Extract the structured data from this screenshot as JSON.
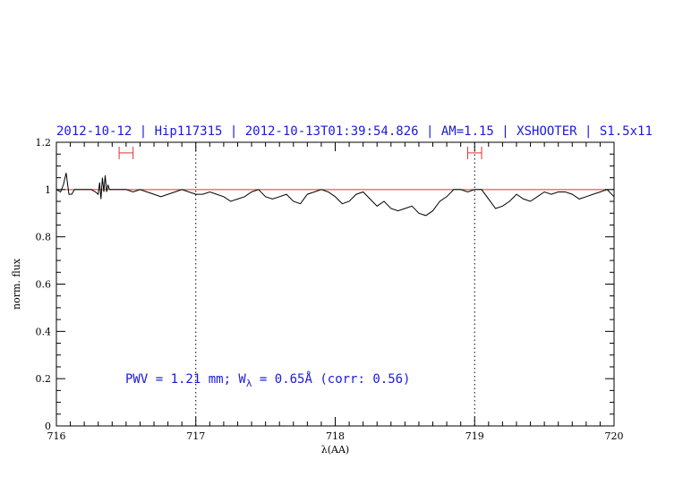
{
  "colors": {
    "title": "#1a1adc",
    "spectrum": "#000000",
    "continuum": "#e03030",
    "markers": "#e03030",
    "vlines": "#000000",
    "annotation": "#1a1adc"
  },
  "chart_data": {
    "type": "line",
    "title": "2012-10-12 | Hip117315 | 2012-10-13T01:39:54.826 | AM=1.15 | XSHOOTER | S1.5x11",
    "xlabel": "λ(AA)",
    "ylabel": "norm. flux",
    "xlim": [
      716,
      720
    ],
    "ylim": [
      0,
      1.2
    ],
    "x_ticks": [
      716,
      717,
      718,
      719,
      720
    ],
    "x_tick_labels": [
      "716",
      "717",
      "718",
      "719",
      "720"
    ],
    "y_ticks": [
      0,
      0.2,
      0.4,
      0.6,
      0.8,
      1,
      1.2
    ],
    "y_tick_labels": [
      "0",
      "0.2",
      "0.4",
      "0.6",
      "0.8",
      "1",
      "1.2"
    ],
    "grid": false,
    "continuum_level": 1.0,
    "vertical_lines": [
      717.0,
      719.0
    ],
    "interval_markers": [
      {
        "x0": 716.45,
        "x1": 716.55,
        "y": 1.155
      },
      {
        "x0": 718.95,
        "x1": 719.05,
        "y": 1.155
      }
    ],
    "annotation": {
      "pwv": "PWV = 1.21 mm; W",
      "sub": "λ",
      "rest": " = 0.65Å (corr: 0.56)"
    },
    "series": [
      {
        "x": [
          716.0,
          716.03,
          716.05,
          716.07,
          716.09,
          716.11,
          716.13,
          716.16,
          716.2,
          716.25,
          716.28,
          716.3,
          716.31,
          716.32,
          716.33,
          716.34,
          716.35,
          716.36,
          716.37,
          716.38,
          716.42,
          716.46,
          716.5,
          716.55,
          716.6,
          716.65,
          716.7,
          716.75,
          716.8,
          716.85,
          716.9,
          716.95,
          717.0,
          717.05,
          717.1,
          717.15,
          717.2,
          717.25,
          717.3,
          717.35,
          717.4,
          717.45,
          717.5,
          717.55,
          717.6,
          717.65,
          717.7,
          717.75,
          717.8,
          717.85,
          717.9,
          717.95,
          718.0,
          718.05,
          718.1,
          718.15,
          718.2,
          718.25,
          718.3,
          718.35,
          718.4,
          718.45,
          718.5,
          718.55,
          718.6,
          718.65,
          718.7,
          718.75,
          718.8,
          718.85,
          718.9,
          718.95,
          719.0,
          719.05,
          719.1,
          719.15,
          719.2,
          719.25,
          719.3,
          719.35,
          719.4,
          719.45,
          719.5,
          719.55,
          719.6,
          719.65,
          719.7,
          719.75,
          719.8,
          719.85,
          719.9,
          719.95,
          720.0
        ],
        "y": [
          1.0,
          0.99,
          1.02,
          1.07,
          0.98,
          0.98,
          1.0,
          1.0,
          1.0,
          1.0,
          0.99,
          0.98,
          1.03,
          0.96,
          1.05,
          0.99,
          1.06,
          0.99,
          1.02,
          1.0,
          1.0,
          1.0,
          1.0,
          0.99,
          1.0,
          0.99,
          0.98,
          0.97,
          0.98,
          0.99,
          1.0,
          0.99,
          0.98,
          0.98,
          0.99,
          0.98,
          0.97,
          0.95,
          0.96,
          0.97,
          0.99,
          1.0,
          0.97,
          0.96,
          0.97,
          0.98,
          0.95,
          0.94,
          0.98,
          0.99,
          1.0,
          0.99,
          0.97,
          0.94,
          0.95,
          0.98,
          0.99,
          0.96,
          0.93,
          0.95,
          0.92,
          0.91,
          0.92,
          0.93,
          0.9,
          0.89,
          0.91,
          0.95,
          0.97,
          1.0,
          1.0,
          0.99,
          1.0,
          1.0,
          0.96,
          0.92,
          0.93,
          0.95,
          0.98,
          0.96,
          0.95,
          0.97,
          0.99,
          0.98,
          0.99,
          0.99,
          0.98,
          0.96,
          0.97,
          0.98,
          0.99,
          1.0,
          0.97
        ]
      }
    ]
  }
}
